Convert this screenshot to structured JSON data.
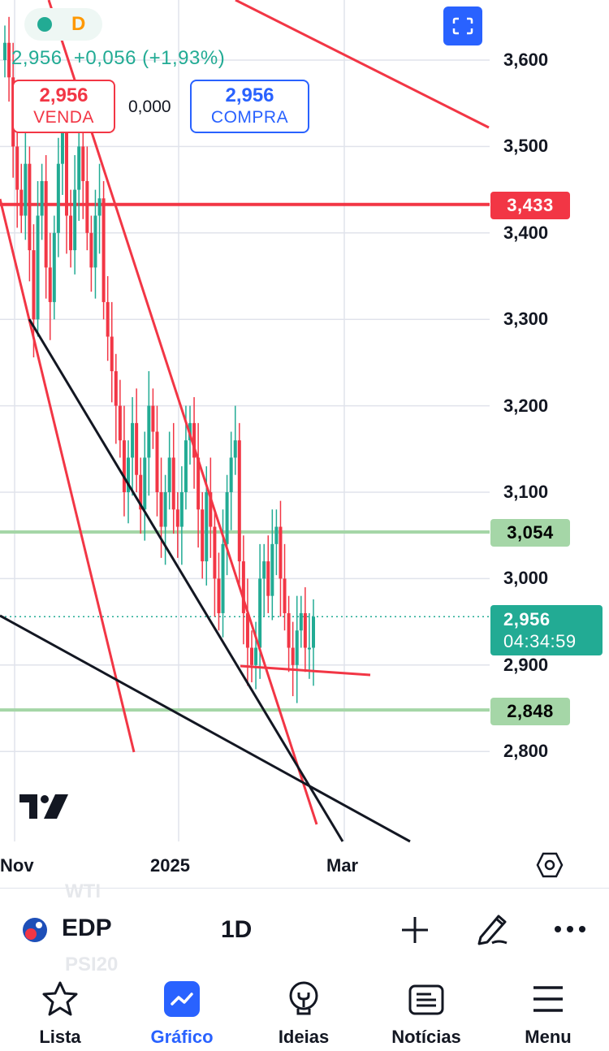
{
  "header": {
    "status_dot_color": "#22ab94",
    "interval_badge": "D",
    "quote": "2,956  +0,056 (+1,93%)",
    "sell": {
      "value": "2,956",
      "label": "VENDA"
    },
    "spread": "0,000",
    "buy": {
      "value": "2,956",
      "label": "COMPRA"
    },
    "fullscreen_icon": "fullscreen-icon"
  },
  "chart_data": {
    "type": "candlestick",
    "ylim": [
      2.7,
      3.67
    ],
    "y_ticks": [
      "3,600",
      "3,500",
      "3,400",
      "3,300",
      "3,200",
      "3,100",
      "3,000",
      "2,900",
      "2,800"
    ],
    "x_ticks": [
      "Nov",
      "2025",
      "Mar"
    ],
    "price_lines": [
      {
        "label": "3,433",
        "value": 3.433,
        "color": "#f23645"
      },
      {
        "label": "3,054",
        "value": 3.054,
        "color": "#a5d6a7"
      },
      {
        "label": "2,848",
        "value": 2.848,
        "color": "#a5d6a7"
      }
    ],
    "current": {
      "price": "2,956",
      "countdown": "04:34:59",
      "value": 2.956,
      "color": "#22ab94"
    }
  },
  "toolbar": {
    "symbol": "EDP",
    "interval": "1D",
    "faded_above": "WTI",
    "faded_below": "PSI20"
  },
  "nav": [
    {
      "label": "Lista",
      "icon": "star-icon"
    },
    {
      "label": "Gráfico",
      "icon": "chart-icon"
    },
    {
      "label": "Ideias",
      "icon": "lightbulb-icon"
    },
    {
      "label": "Notícias",
      "icon": "news-icon"
    },
    {
      "label": "Menu",
      "icon": "menu-icon"
    }
  ],
  "colors": {
    "up": "#22ab94",
    "down": "#f23645",
    "accent": "#2962ff"
  }
}
